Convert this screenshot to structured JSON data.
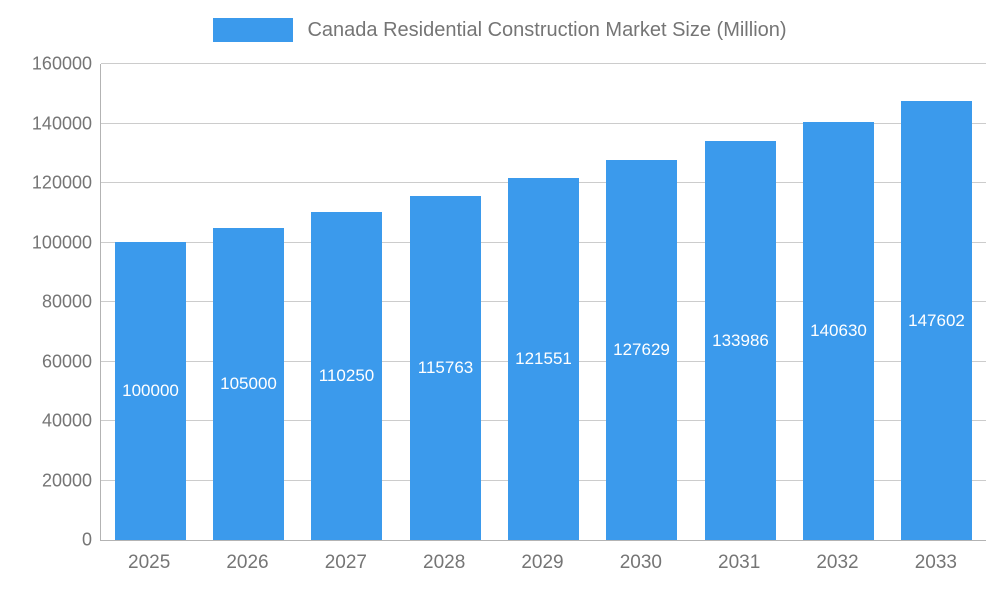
{
  "chart_data": {
    "type": "bar",
    "title": "Canada Residential Construction Market Size (Million)",
    "categories": [
      "2025",
      "2026",
      "2027",
      "2028",
      "2029",
      "2030",
      "2031",
      "2032",
      "2033"
    ],
    "values": [
      100000,
      105000,
      110250,
      115763,
      121551,
      127629,
      133986,
      140630,
      147602
    ],
    "value_labels": [
      "100000",
      "105000",
      "110250",
      "115763",
      "121551",
      "127629",
      "133986",
      "140630",
      "147602"
    ],
    "xlabel": "",
    "ylabel": "",
    "ylim": [
      0,
      160000
    ],
    "ytick_interval": 20000,
    "ytick_labels": [
      "0",
      "20000",
      "40000",
      "60000",
      "80000",
      "100000",
      "120000",
      "140000",
      "160000"
    ],
    "grid": true,
    "legend_position": "top",
    "colors": {
      "bar": "#3b9aec",
      "bar_value_text": "#ffffff",
      "axis_text": "#757575",
      "title_text": "#757575",
      "gridline": "#cccccc",
      "axis_line": "#b3b3b3",
      "background": "#ffffff"
    }
  }
}
